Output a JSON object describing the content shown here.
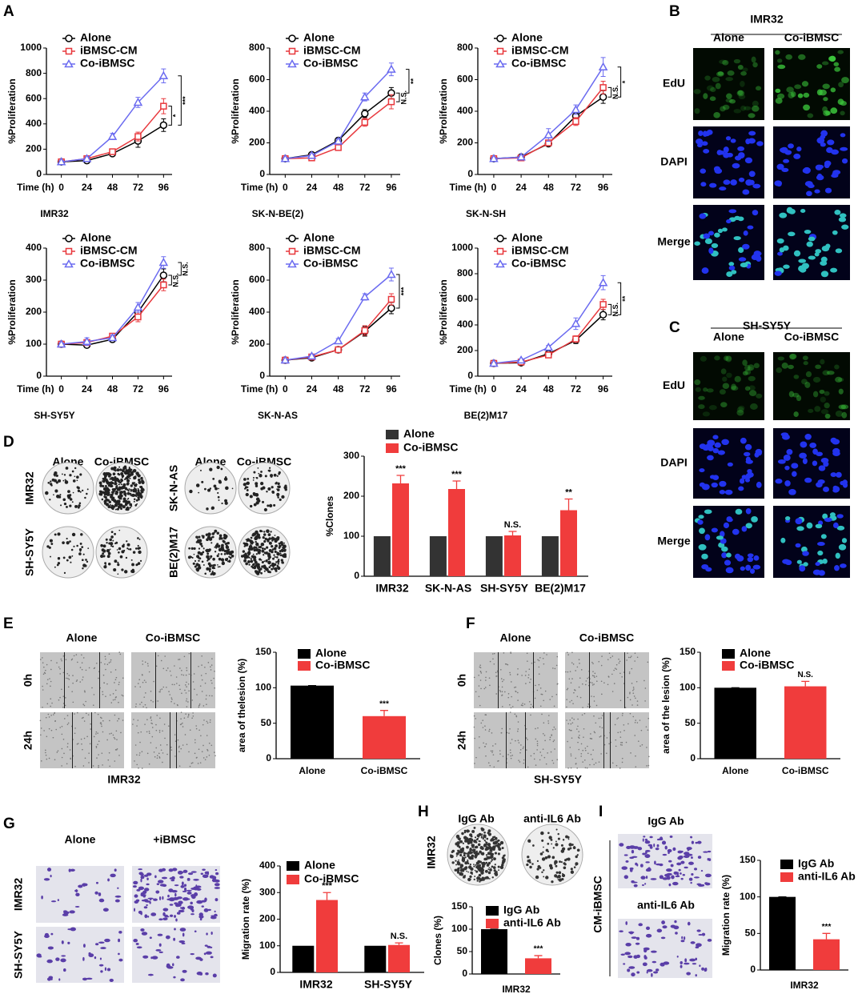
{
  "panel_letters": [
    "A",
    "B",
    "C",
    "D",
    "E",
    "F",
    "G",
    "H",
    "I"
  ],
  "image_panels": {
    "B": {
      "title": "IMR32",
      "columns": [
        "Alone",
        "Co-iBMSC"
      ],
      "rows": [
        "EdU",
        "DAPI",
        "Merge"
      ]
    },
    "C": {
      "title": "SH-SY5Y",
      "columns": [
        "Alone",
        "Co-iBMSC"
      ],
      "rows": [
        "EdU",
        "DAPI",
        "Merge"
      ]
    },
    "D": {
      "columns": [
        "Alone",
        "Co-iBMSC",
        "Alone",
        "Co-iBMSC"
      ],
      "rows": [
        "IMR32",
        "SH-SY5Y",
        "SK-N-AS",
        "BE(2)M17"
      ]
    },
    "E": {
      "columns": [
        "Alone",
        "Co-iBMSC"
      ],
      "rows": [
        "0h",
        "24h"
      ],
      "caption": "IMR32"
    },
    "F": {
      "columns": [
        "Alone",
        "Co-iBMSC"
      ],
      "rows": [
        "0h",
        "24h"
      ],
      "caption": "SH-SY5Y"
    },
    "G": {
      "columns": [
        "Alone",
        "+iBMSC"
      ],
      "rows": [
        "IMR32",
        "SH-SY5Y"
      ]
    },
    "H": {
      "columns": [
        "IgG Ab",
        "anti-IL6 Ab"
      ],
      "rows": [
        "IMR32"
      ]
    },
    "I": {
      "rows": [
        "IgG Ab",
        "anti-IL6 Ab"
      ],
      "side": "CM-iBMSC"
    }
  },
  "chart_data": [
    {
      "type": "line",
      "ylabel": "%Proliferation",
      "xlabel": "Time (h)",
      "caption": "IMR32",
      "x": [
        0,
        24,
        48,
        72,
        96
      ],
      "xlim": [
        -14,
        104
      ],
      "xticks": [
        0,
        24,
        48,
        72,
        96
      ],
      "ylim": [
        0,
        1000
      ],
      "yticks": [
        0,
        200,
        400,
        600,
        800,
        1000
      ],
      "series": [
        {
          "name": "Alone",
          "color": "#000000",
          "marker": "circle",
          "values": [
            100,
            110,
            165,
            265,
            390
          ],
          "errors": [
            8,
            10,
            15,
            50,
            50
          ]
        },
        {
          "name": "iBMSC-CM",
          "color": "#e8383d",
          "marker": "square",
          "values": [
            100,
            125,
            180,
            300,
            540
          ],
          "errors": [
            8,
            10,
            20,
            35,
            60
          ]
        },
        {
          "name": "Co-iBMSC",
          "color": "#6b6bf0",
          "marker": "triangle",
          "values": [
            100,
            125,
            300,
            570,
            780
          ],
          "errors": [
            8,
            12,
            25,
            40,
            55
          ]
        }
      ],
      "annotations": [
        {
          "text": "***",
          "series": [
            2,
            0
          ]
        },
        {
          "text": "*",
          "series": [
            1,
            0
          ]
        }
      ]
    },
    {
      "type": "line",
      "ylabel": "%Proliferation",
      "xlabel": "Time (h)",
      "caption": "SK-N-BE(2)",
      "x": [
        0,
        24,
        48,
        72,
        96
      ],
      "xlim": [
        -14,
        104
      ],
      "xticks": [
        0,
        24,
        48,
        72,
        96
      ],
      "ylim": [
        0,
        800
      ],
      "yticks": [
        0,
        200,
        400,
        600,
        800
      ],
      "series": [
        {
          "name": "Alone",
          "color": "#000000",
          "marker": "circle",
          "values": [
            100,
            125,
            215,
            385,
            515
          ],
          "errors": [
            8,
            10,
            15,
            25,
            35
          ]
        },
        {
          "name": "iBMSC-CM",
          "color": "#e8383d",
          "marker": "square",
          "values": [
            100,
            105,
            170,
            330,
            460
          ],
          "errors": [
            8,
            10,
            15,
            25,
            45
          ]
        },
        {
          "name": "Co-iBMSC",
          "color": "#6b6bf0",
          "marker": "triangle",
          "values": [
            100,
            120,
            210,
            490,
            665
          ],
          "errors": [
            8,
            10,
            15,
            25,
            40
          ]
        }
      ],
      "annotations": [
        {
          "text": "**",
          "series": [
            2,
            0
          ]
        },
        {
          "text": "N.S.",
          "series": [
            1,
            0
          ]
        }
      ]
    },
    {
      "type": "line",
      "ylabel": "%Proliferation",
      "xlabel": "Time (h)",
      "caption": "SK-N-SH",
      "x": [
        0,
        24,
        48,
        72,
        96
      ],
      "xlim": [
        -14,
        104
      ],
      "xticks": [
        0,
        24,
        48,
        72,
        96
      ],
      "ylim": [
        0,
        800
      ],
      "yticks": [
        0,
        200,
        400,
        600,
        800
      ],
      "series": [
        {
          "name": "Alone",
          "color": "#000000",
          "marker": "circle",
          "values": [
            100,
            110,
            195,
            370,
            490
          ],
          "errors": [
            8,
            10,
            15,
            25,
            40
          ]
        },
        {
          "name": "iBMSC-CM",
          "color": "#e8383d",
          "marker": "square",
          "values": [
            100,
            105,
            200,
            335,
            550
          ],
          "errors": [
            8,
            10,
            15,
            25,
            40
          ]
        },
        {
          "name": "Co-iBMSC",
          "color": "#6b6bf0",
          "marker": "triangle",
          "values": [
            100,
            110,
            250,
            410,
            680
          ],
          "errors": [
            8,
            10,
            40,
            30,
            60
          ]
        }
      ],
      "annotations": [
        {
          "text": "*",
          "series": [
            2,
            0
          ]
        },
        {
          "text": "N.S.",
          "series": [
            1,
            0
          ]
        }
      ]
    },
    {
      "type": "line",
      "ylabel": "%Proliferation",
      "xlabel": "Time (h)",
      "caption": "SH-SY5Y",
      "x": [
        0,
        24,
        48,
        72,
        96
      ],
      "xlim": [
        -14,
        104
      ],
      "xticks": [
        0,
        24,
        48,
        72,
        96
      ],
      "ylim": [
        0,
        400
      ],
      "yticks": [
        0,
        100,
        200,
        300,
        400
      ],
      "series": [
        {
          "name": "Alone",
          "color": "#000000",
          "marker": "circle",
          "values": [
            100,
            97,
            115,
            200,
            315
          ],
          "errors": [
            4,
            8,
            8,
            15,
            20
          ]
        },
        {
          "name": "iBMSC-CM",
          "color": "#e8383d",
          "marker": "square",
          "values": [
            100,
            105,
            125,
            185,
            285
          ],
          "errors": [
            4,
            8,
            8,
            15,
            18
          ]
        },
        {
          "name": "Co-iBMSC",
          "color": "#6b6bf0",
          "marker": "triangle",
          "values": [
            100,
            108,
            120,
            215,
            355
          ],
          "errors": [
            4,
            12,
            8,
            15,
            18
          ]
        }
      ],
      "annotations": [
        {
          "text": "N.S.",
          "series": [
            2,
            0
          ]
        },
        {
          "text": "N.S.",
          "series": [
            1,
            0
          ]
        }
      ]
    },
    {
      "type": "line",
      "ylabel": "%Proliferation",
      "xlabel": "Time (h)",
      "caption": "SK-N-AS",
      "x": [
        0,
        24,
        48,
        72,
        96
      ],
      "xlim": [
        -14,
        104
      ],
      "xticks": [
        0,
        24,
        48,
        72,
        96
      ],
      "ylim": [
        0,
        800
      ],
      "yticks": [
        0,
        200,
        400,
        600,
        800
      ],
      "series": [
        {
          "name": "Alone",
          "color": "#000000",
          "marker": "circle",
          "values": [
            100,
            115,
            165,
            280,
            425
          ],
          "errors": [
            8,
            10,
            10,
            30,
            35
          ]
        },
        {
          "name": "iBMSC-CM",
          "color": "#e8383d",
          "marker": "square",
          "values": [
            100,
            120,
            165,
            285,
            480
          ],
          "errors": [
            8,
            10,
            12,
            30,
            35
          ]
        },
        {
          "name": "Co-iBMSC",
          "color": "#6b6bf0",
          "marker": "triangle",
          "values": [
            100,
            125,
            220,
            495,
            635
          ],
          "errors": [
            8,
            10,
            15,
            20,
            40
          ]
        }
      ],
      "annotations": [
        {
          "text": "***",
          "series": [
            2,
            0
          ]
        }
      ]
    },
    {
      "type": "line",
      "ylabel": "%Proliferation",
      "xlabel": "Time (h)",
      "caption": "BE(2)M17",
      "x": [
        0,
        24,
        48,
        72,
        96
      ],
      "xlim": [
        -14,
        104
      ],
      "xticks": [
        0,
        24,
        48,
        72,
        96
      ],
      "ylim": [
        0,
        1000
      ],
      "yticks": [
        0,
        200,
        400,
        600,
        800,
        1000
      ],
      "series": [
        {
          "name": "Alone",
          "color": "#000000",
          "marker": "circle",
          "values": [
            100,
            105,
            175,
            280,
            480
          ],
          "errors": [
            8,
            10,
            15,
            25,
            40
          ]
        },
        {
          "name": "iBMSC-CM",
          "color": "#e8383d",
          "marker": "square",
          "values": [
            100,
            110,
            165,
            290,
            560
          ],
          "errors": [
            8,
            10,
            15,
            25,
            40
          ]
        },
        {
          "name": "Co-iBMSC",
          "color": "#6b6bf0",
          "marker": "triangle",
          "values": [
            100,
            125,
            225,
            410,
            730
          ],
          "errors": [
            8,
            10,
            15,
            45,
            55
          ]
        }
      ],
      "annotations": [
        {
          "text": "**",
          "series": [
            2,
            0
          ]
        },
        {
          "text": "N.S.",
          "series": [
            1,
            0
          ]
        }
      ]
    },
    {
      "type": "bar",
      "ylabel": "%Clones",
      "categories": [
        "IMR32",
        "SK-N-AS",
        "SH-SY5Y",
        "BE(2)M17"
      ],
      "ylim": [
        0,
        300
      ],
      "yticks": [
        0,
        100,
        200,
        300
      ],
      "series": [
        {
          "name": "Alone",
          "color": "#333333",
          "values": [
            100,
            100,
            100,
            100
          ]
        },
        {
          "name": "Co-iBMSC",
          "color": "#f03c3c",
          "values": [
            232,
            218,
            102,
            165
          ],
          "errors": [
            20,
            20,
            10,
            28
          ]
        }
      ],
      "annotations": [
        "***",
        "***",
        "N.S.",
        "**"
      ]
    },
    {
      "type": "bar",
      "ylabel": "area of thelesion (%)",
      "categories": [
        "Alone",
        "Co-iBMSC"
      ],
      "values": [
        103,
        60
      ],
      "errors": [
        0,
        8
      ],
      "colors": [
        "#000000",
        "#f03c3c"
      ],
      "ylim": [
        0,
        150
      ],
      "yticks": [
        0,
        50,
        100,
        150
      ],
      "annotations": [
        null,
        "***"
      ]
    },
    {
      "type": "bar",
      "ylabel": "area of the lesion (%)",
      "categories": [
        "Alone",
        "Co-iBMSC"
      ],
      "values": [
        100,
        102
      ],
      "errors": [
        0,
        7
      ],
      "colors": [
        "#000000",
        "#f03c3c"
      ],
      "ylim": [
        0,
        150
      ],
      "yticks": [
        0,
        50,
        100,
        150
      ],
      "annotations": [
        null,
        "N.S."
      ]
    },
    {
      "type": "bar",
      "ylabel": "Migration rate (%)",
      "categories": [
        "IMR32",
        "SH-SY5Y"
      ],
      "ylim": [
        0,
        400
      ],
      "yticks": [
        0,
        100,
        200,
        300,
        400
      ],
      "series": [
        {
          "name": "Alone",
          "color": "#000000",
          "values": [
            100,
            100
          ]
        },
        {
          "name": "Co-iBMSC",
          "color": "#f03c3c",
          "values": [
            272,
            103
          ],
          "errors": [
            28,
            8
          ]
        }
      ],
      "annotations": [
        "***",
        "N.S."
      ]
    },
    {
      "type": "bar",
      "ylabel": "Clones (%)",
      "xlabel": "IMR32",
      "categories": [
        "IgG Ab",
        "anti-IL6 Ab"
      ],
      "values": [
        100,
        35
      ],
      "errors": [
        0,
        6
      ],
      "colors": [
        "#000000",
        "#f03c3c"
      ],
      "ylim": [
        0,
        150
      ],
      "yticks": [
        0,
        50,
        100,
        150
      ],
      "annotations": [
        null,
        "***"
      ]
    },
    {
      "type": "bar",
      "ylabel": "Migration rate (%)",
      "xlabel": "IMR32",
      "categories": [
        "IgG Ab",
        "anti-IL6 Ab"
      ],
      "values": [
        100,
        42
      ],
      "errors": [
        0,
        8
      ],
      "colors": [
        "#000000",
        "#f03c3c"
      ],
      "ylim": [
        0,
        150
      ],
      "yticks": [
        0,
        50,
        100,
        150
      ],
      "annotations": [
        null,
        "***"
      ]
    }
  ]
}
